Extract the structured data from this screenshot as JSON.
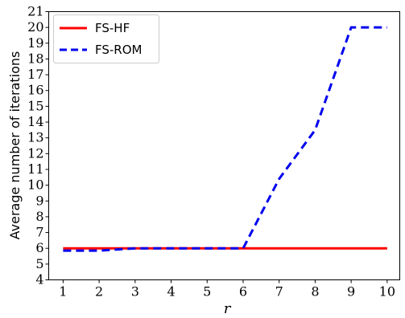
{
  "chart_data": {
    "type": "line",
    "title": "",
    "xlabel": "r",
    "ylabel": "Average number of iterations",
    "x": [
      1,
      2,
      3,
      4,
      5,
      6,
      7,
      8,
      9,
      10
    ],
    "xlim": [
      0.6,
      10.35
    ],
    "ylim": [
      4,
      21
    ],
    "xticks": [
      "1",
      "2",
      "3",
      "4",
      "5",
      "6",
      "7",
      "8",
      "9",
      "10"
    ],
    "yticks": [
      "4",
      "5",
      "6",
      "7",
      "8",
      "9",
      "10",
      "11",
      "12",
      "13",
      "14",
      "15",
      "16",
      "17",
      "18",
      "19",
      "20",
      "21"
    ],
    "grid": false,
    "legend_position": "top-left",
    "series": [
      {
        "name": "FS-HF",
        "values": [
          6,
          6,
          6,
          6,
          6,
          6,
          6,
          6,
          6,
          6
        ],
        "color": "#ff0000",
        "style": "solid"
      },
      {
        "name": "FS-ROM",
        "values": [
          5.85,
          5.85,
          6,
          6,
          6,
          6,
          10.4,
          13.5,
          20,
          20
        ],
        "color": "#0000ee",
        "style": "dashed"
      }
    ]
  }
}
